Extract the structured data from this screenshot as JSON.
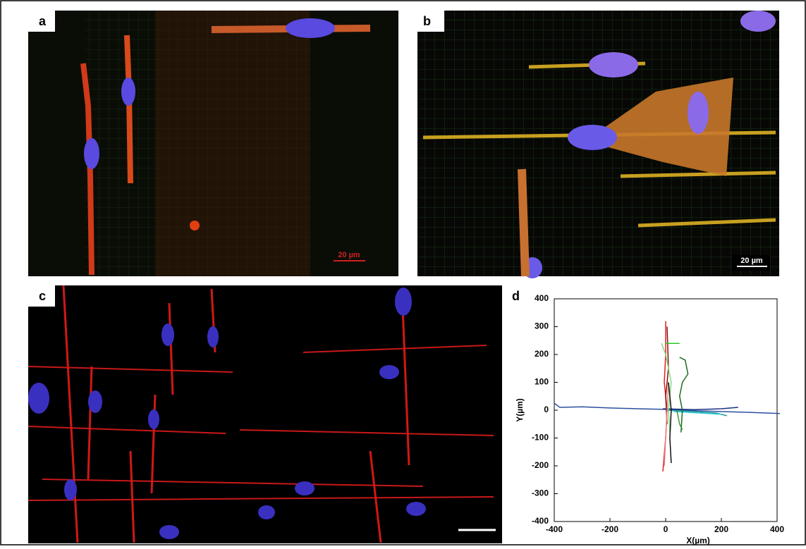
{
  "panels": [
    {
      "label": "a",
      "scale_bar": "20 µm"
    },
    {
      "label": "b",
      "scale_bar": "20 µm"
    },
    {
      "label": "c"
    },
    {
      "label": "d"
    }
  ],
  "chart_data": {
    "type": "line",
    "xlabel": "X(µm)",
    "ylabel": "Y(µm)",
    "xlim": [
      -400,
      400
    ],
    "ylim": [
      -400,
      400
    ],
    "xticks": [
      -400,
      -200,
      0,
      200,
      400
    ],
    "yticks": [
      -400,
      -300,
      -200,
      -100,
      0,
      100,
      200,
      300,
      400
    ],
    "series": [
      {
        "color": "#2b4fa0",
        "x": [
          -400,
          -380,
          -300,
          -200,
          -100,
          0,
          100,
          200,
          300,
          410
        ],
        "values": [
          25,
          10,
          12,
          8,
          5,
          3,
          -2,
          -5,
          -8,
          -12
        ]
      },
      {
        "color": "#1a2f80",
        "x": [
          -10,
          100,
          200,
          260
        ],
        "values": [
          5,
          2,
          5,
          10
        ]
      },
      {
        "color": "#1f9a9a",
        "x": [
          0,
          100,
          180,
          220
        ],
        "values": [
          0,
          -5,
          -10,
          -20
        ]
      },
      {
        "color": "#35c7d8",
        "x": [
          30,
          120,
          200
        ],
        "values": [
          -5,
          -10,
          -15
        ]
      },
      {
        "color": "#e02020",
        "x": [
          0,
          0,
          -5,
          5,
          0,
          -10
        ],
        "values": [
          320,
          200,
          100,
          0,
          -100,
          -220
        ]
      },
      {
        "color": "#8b1010",
        "x": [
          5,
          10,
          0,
          5
        ],
        "values": [
          300,
          150,
          50,
          -50
        ]
      },
      {
        "color": "#f08080",
        "x": [
          -5,
          0,
          5,
          10
        ],
        "values": [
          -200,
          -100,
          0,
          100
        ]
      },
      {
        "color": "#7ee07e",
        "x": [
          -15,
          0,
          20,
          10,
          15
        ],
        "values": [
          240,
          200,
          100,
          0,
          -80
        ]
      },
      {
        "color": "#22cc22",
        "x": [
          0,
          50
        ],
        "values": [
          240,
          240
        ]
      },
      {
        "color": "#1e6b1e",
        "x": [
          50,
          70,
          80,
          60,
          50,
          60,
          55
        ],
        "values": [
          190,
          180,
          130,
          100,
          50,
          0,
          -80
        ]
      },
      {
        "color": "#111111",
        "x": [
          20,
          15,
          20,
          10
        ],
        "values": [
          -190,
          -100,
          0,
          100
        ]
      },
      {
        "color": "#3a9a3a",
        "x": [
          40,
          50,
          60
        ],
        "values": [
          0,
          -50,
          -70
        ]
      }
    ]
  }
}
